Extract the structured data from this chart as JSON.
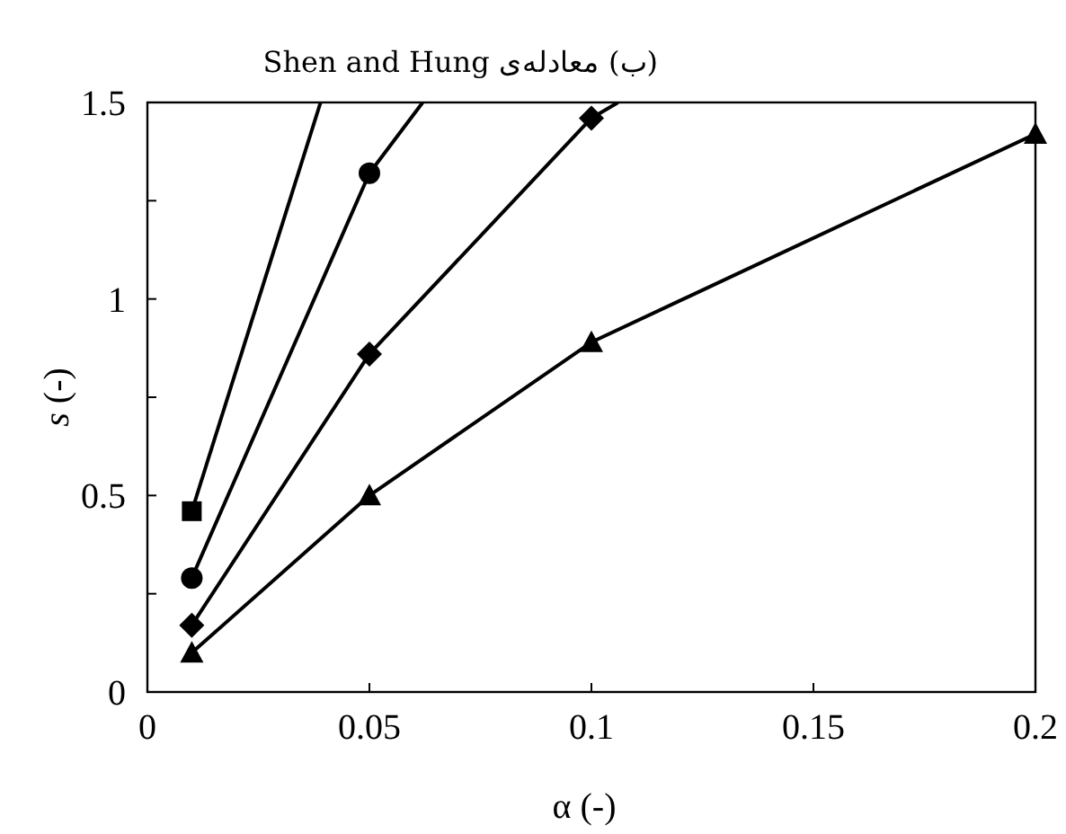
{
  "chart_data": {
    "type": "line",
    "title": "(ب) معادله‌ی Shen and Hung",
    "xlabel": "α (-)",
    "ylabel": "*s* (-)",
    "xlim": [
      0,
      0.2
    ],
    "ylim": [
      0,
      1.5
    ],
    "xticks": [
      0,
      0.05,
      0.1,
      0.15,
      0.2
    ],
    "yticks": [
      0,
      {
        "value": 0.25,
        "label": null
      },
      0.5,
      {
        "value": 0.75,
        "label": null
      },
      1,
      {
        "value": 1.25,
        "label": null
      },
      1.5
    ],
    "grid": false,
    "line_style": "solid",
    "series": [
      {
        "color": "#000000",
        "marker": "square",
        "x": [
          0.01,
          0.039
        ],
        "values": [
          0.46,
          1.5
        ]
      },
      {
        "color": "#000000",
        "marker": "circle",
        "x": [
          0.01,
          0.05,
          0.062
        ],
        "values": [
          0.29,
          1.32,
          1.5
        ]
      },
      {
        "color": "#000000",
        "marker": "diamond",
        "x": [
          0.01,
          0.05,
          0.1,
          0.106
        ],
        "values": [
          0.17,
          0.86,
          1.46,
          1.5
        ]
      },
      {
        "color": "#000000",
        "marker": "triangle",
        "x": [
          0.01,
          0.05,
          0.1,
          0.2
        ],
        "values": [
          0.1,
          0.5,
          0.89,
          1.42
        ]
      }
    ]
  }
}
